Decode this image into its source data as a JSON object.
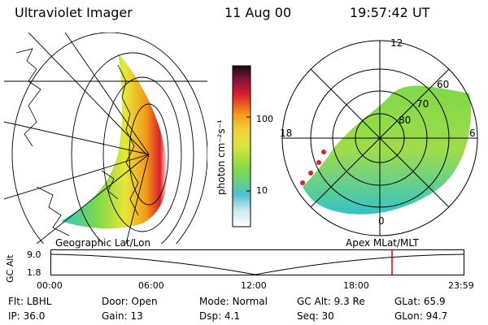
{
  "header": {
    "instrument": "Ultraviolet Imager",
    "date": "11 Aug 00",
    "time": "19:57:42 UT"
  },
  "colorbar": {
    "unit_label": "photon cm⁻²s⁻¹",
    "ticks": [
      "100",
      "10"
    ]
  },
  "panels": {
    "left_label": "Geographic Lat/Lon",
    "right_label": "Apex  MLat/MLT"
  },
  "polar_plot": {
    "mlt_labels": {
      "top": "12",
      "left": "18",
      "right": "6",
      "bottom": "0"
    },
    "lat_labels": [
      "60",
      "70",
      "80"
    ]
  },
  "altitude_strip": {
    "ylabel": "GC Alt",
    "yticks": [
      "9.0",
      "1.8"
    ],
    "xticks": [
      "00:00",
      "06:00",
      "12:00",
      "18:00",
      "23:59"
    ],
    "current_time_marker_color": "#d00000"
  },
  "status": {
    "row1": [
      {
        "label": "Flt:",
        "value": "LBHL"
      },
      {
        "label": "Door:",
        "value": "Open"
      },
      {
        "label": "Mode:",
        "value": "Normal"
      },
      {
        "label": "GC Alt:",
        "value": "9.3 Re"
      },
      {
        "label": "GLat:",
        "value": "65.9"
      }
    ],
    "row2": [
      {
        "label": "IP:",
        "value": "36.0"
      },
      {
        "label": "Gain:",
        "value": "13"
      },
      {
        "label": "Dsp:",
        "value": "4.1"
      },
      {
        "label": "Seq:",
        "value": "30"
      },
      {
        "label": "GLon:",
        "value": "94.7"
      }
    ]
  }
}
